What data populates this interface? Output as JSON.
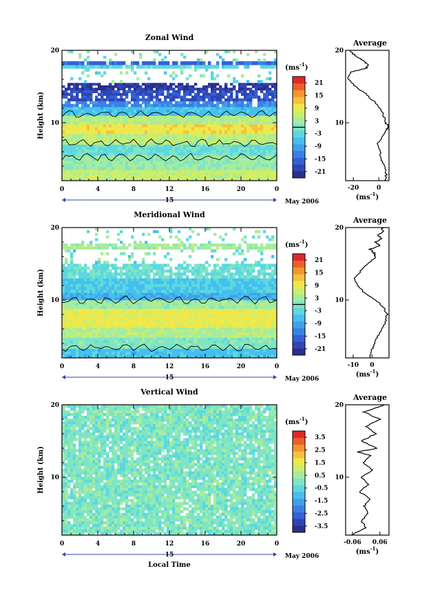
{
  "colors": {
    "scale": [
      "#2a2f8a",
      "#2f45b5",
      "#3461d6",
      "#3a80e6",
      "#3fa0ec",
      "#45c0ee",
      "#5cd8e0",
      "#7fe5c4",
      "#a6ec9e",
      "#ccee6a",
      "#f0e84a",
      "#f7c23a",
      "#f59530",
      "#ef5e2a",
      "#e0282a"
    ],
    "contour": "#000000",
    "axis": "#000000",
    "missing": "#ffffff"
  },
  "common": {
    "ylabel": "Height (km)",
    "xlabel": "Local Time",
    "date_label": "15",
    "month_label": "May 2006",
    "unit_label": "(ms",
    "unit_sup": "-1",
    "profile_title": "Average",
    "x_ticks": [
      "0",
      "4",
      "8",
      "12",
      "16",
      "20",
      "0"
    ],
    "y_ticks": [
      "20",
      "10"
    ]
  },
  "chart_data": [
    {
      "type": "heatmap",
      "title": "Zonal Wind",
      "x_range": [
        0,
        24
      ],
      "y_range": [
        2,
        20
      ],
      "colorbar": {
        "ticks": [
          "21",
          "15",
          "9",
          "3",
          "-3",
          "-9",
          "-15",
          "-21"
        ],
        "range": [
          -24,
          24
        ],
        "zero_line": 0
      },
      "layers": [
        {
          "y0": 2.0,
          "y1": 3.5,
          "value": 6
        },
        {
          "y0": 3.5,
          "y1": 5.5,
          "value": 2
        },
        {
          "y0": 5.5,
          "y1": 7.0,
          "value": -2
        },
        {
          "y0": 7.0,
          "y1": 8.5,
          "value": 5
        },
        {
          "y0": 8.5,
          "y1": 9.8,
          "value": 10
        },
        {
          "y0": 9.8,
          "y1": 11.0,
          "value": 4
        },
        {
          "y0": 11.0,
          "y1": 12.2,
          "value": -6
        },
        {
          "y0": 12.2,
          "y1": 13.0,
          "value": -12
        },
        {
          "y0": 13.0,
          "y1": 14.5,
          "value": -18
        },
        {
          "y0": 14.5,
          "y1": 15.5,
          "value": -21
        },
        {
          "y0": 15.5,
          "y1": 17.5,
          "value": null
        },
        {
          "y0": 17.5,
          "y1": 18.0,
          "value": -3
        },
        {
          "y0": 18.0,
          "y1": 18.5,
          "value": -15
        },
        {
          "y0": 18.5,
          "y1": 20.0,
          "value": null
        }
      ],
      "profile": {
        "xlabel": "(ms",
        "xsup": "-1",
        "x_range": [
          -26,
          8
        ],
        "x_ticks": [
          "-20",
          "0"
        ],
        "x_tick_values": [
          -20,
          0
        ],
        "points": [
          [
            5,
            2
          ],
          [
            6,
            3
          ],
          [
            4,
            4
          ],
          [
            2,
            5
          ],
          [
            1,
            6
          ],
          [
            -1,
            7
          ],
          [
            2,
            8
          ],
          [
            6,
            9
          ],
          [
            8,
            9.5
          ],
          [
            5,
            10
          ],
          [
            4,
            11
          ],
          [
            1,
            12
          ],
          [
            -4,
            13
          ],
          [
            -10,
            14
          ],
          [
            -18,
            15
          ],
          [
            -24,
            16
          ],
          [
            -22,
            17
          ],
          [
            -10,
            17.5
          ],
          [
            -8,
            18
          ],
          [
            -12,
            18.5
          ],
          [
            -16,
            19
          ],
          [
            -20,
            19.5
          ],
          [
            -22,
            20
          ]
        ]
      }
    },
    {
      "type": "heatmap",
      "title": "Meridional Wind",
      "x_range": [
        0,
        24
      ],
      "y_range": [
        2,
        20
      ],
      "colorbar": {
        "ticks": [
          "21",
          "15",
          "9",
          "3",
          "-3",
          "-9",
          "-15",
          "-21"
        ],
        "range": [
          -24,
          24
        ],
        "zero_line": 0
      },
      "layers": [
        {
          "y0": 2.0,
          "y1": 3.3,
          "value": -6
        },
        {
          "y0": 3.3,
          "y1": 4.8,
          "value": 0
        },
        {
          "y0": 4.8,
          "y1": 6.2,
          "value": 4
        },
        {
          "y0": 6.2,
          "y1": 8.8,
          "value": 9
        },
        {
          "y0": 8.8,
          "y1": 10.0,
          "value": 3
        },
        {
          "y0": 10.0,
          "y1": 11.0,
          "value": -8
        },
        {
          "y0": 11.0,
          "y1": 13.0,
          "value": -5
        },
        {
          "y0": 13.0,
          "y1": 15.0,
          "value": -2
        },
        {
          "y0": 15.0,
          "y1": 17.0,
          "value": null
        },
        {
          "y0": 17.0,
          "y1": 17.8,
          "value": 3
        },
        {
          "y0": 17.8,
          "y1": 20.0,
          "value": null
        }
      ],
      "profile": {
        "xlabel": "(ms",
        "xsup": "-1",
        "x_range": [
          -14,
          9
        ],
        "x_ticks": [
          "-10",
          "0"
        ],
        "x_tick_values": [
          -10,
          0
        ],
        "points": [
          [
            -1,
            2
          ],
          [
            0,
            3
          ],
          [
            1,
            4
          ],
          [
            3,
            5
          ],
          [
            5,
            6
          ],
          [
            7,
            7
          ],
          [
            8,
            8
          ],
          [
            6,
            9
          ],
          [
            2,
            10
          ],
          [
            -4,
            11
          ],
          [
            -8,
            12
          ],
          [
            -9,
            13
          ],
          [
            -6,
            14
          ],
          [
            -2,
            15
          ],
          [
            2,
            16
          ],
          [
            1,
            16.5
          ],
          [
            -1,
            17
          ],
          [
            4,
            17.5
          ],
          [
            2,
            18
          ],
          [
            5,
            18.5
          ],
          [
            3,
            19
          ],
          [
            6,
            19.5
          ],
          [
            5,
            20
          ]
        ]
      }
    },
    {
      "type": "heatmap",
      "title": "Vertical Wind",
      "x_range": [
        0,
        24
      ],
      "y_range": [
        2,
        20
      ],
      "colorbar": {
        "ticks": [
          "3.5",
          "2.5",
          "1.5",
          "0.5",
          "-0.5",
          "-1.5",
          "-2.5",
          "-3.5"
        ],
        "range": [
          -4,
          4
        ],
        "zero_line": null
      },
      "layers": [
        {
          "y0": 2.0,
          "y1": 20.0,
          "value": 0.0
        }
      ],
      "profile": {
        "xlabel": "(ms",
        "xsup": "-1",
        "x_range": [
          -0.09,
          0.1
        ],
        "x_ticks": [
          "-0.06",
          "0.06"
        ],
        "x_tick_values": [
          -0.06,
          0.06
        ],
        "points": [
          [
            -0.07,
            2
          ],
          [
            0,
            3
          ],
          [
            -0.02,
            4
          ],
          [
            0.01,
            5
          ],
          [
            -0.01,
            6
          ],
          [
            0.02,
            7
          ],
          [
            -0.03,
            8
          ],
          [
            0.01,
            9
          ],
          [
            -0.02,
            10
          ],
          [
            0.03,
            11
          ],
          [
            -0.01,
            12
          ],
          [
            0.02,
            13
          ],
          [
            -0.04,
            13.5
          ],
          [
            0.05,
            14
          ],
          [
            -0.02,
            15
          ],
          [
            0.04,
            16
          ],
          [
            0.0,
            17
          ],
          [
            0.06,
            18
          ],
          [
            -0.01,
            19
          ],
          [
            0.08,
            20
          ]
        ]
      }
    }
  ]
}
